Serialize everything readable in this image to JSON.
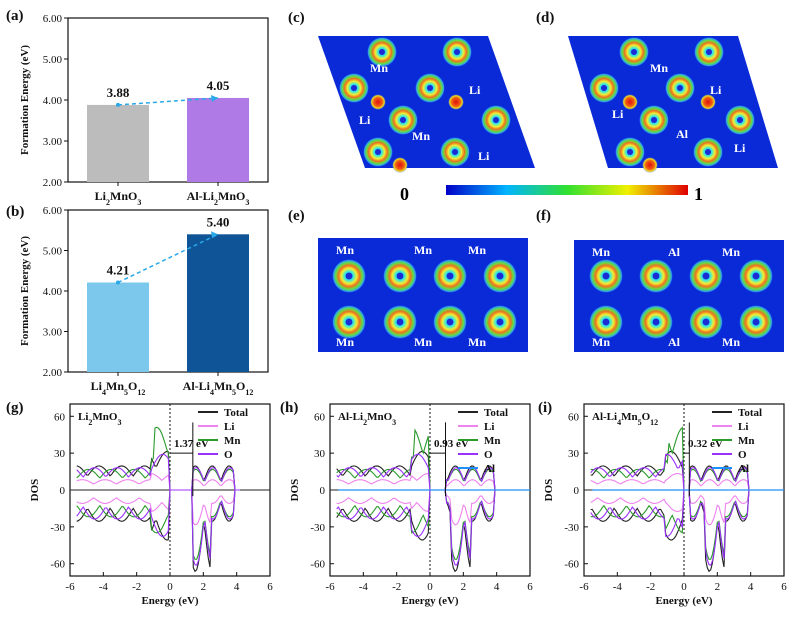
{
  "panel_labels": {
    "a": "(a)",
    "b": "(b)",
    "c": "(c)",
    "d": "(d)",
    "e": "(e)",
    "f": "(f)",
    "g": "(g)",
    "h": "(h)",
    "i": "(i)"
  },
  "colorbar": {
    "min_label": "0",
    "max_label": "1"
  },
  "maps": {
    "c": {
      "labels": [
        "Mn",
        "Li",
        "Li",
        "Mn",
        "Li"
      ]
    },
    "d": {
      "labels": [
        "Mn",
        "Li",
        "Li",
        "Al",
        "Li"
      ]
    },
    "e": {
      "labels": [
        "Mn",
        "Mn",
        "Mn",
        "Mn",
        "Mn",
        "Mn"
      ]
    },
    "f": {
      "labels": [
        "Mn",
        "Al",
        "Mn",
        "Mn",
        "Al",
        "Mn"
      ]
    }
  },
  "chart_data": [
    {
      "id": "a",
      "type": "bar",
      "ylabel": "Formation Energy (eV)",
      "ylim": [
        2.0,
        6.0
      ],
      "yticks": [
        "2.00",
        "3.00",
        "4.00",
        "5.00",
        "6.00"
      ],
      "categories": [
        "Li2MnO3",
        "Al-Li2MnO3"
      ],
      "values": [
        3.88,
        4.05
      ],
      "value_labels": [
        "3.88",
        "4.05"
      ],
      "colors": [
        "#bcbcbc",
        "#b07ae6"
      ]
    },
    {
      "id": "b",
      "type": "bar",
      "ylabel": "Formation Energy (eV)",
      "ylim": [
        2.0,
        6.0
      ],
      "yticks": [
        "2.00",
        "3.00",
        "4.00",
        "5.00",
        "6.00"
      ],
      "categories": [
        "Li4Mn5O12",
        "Al-Li4Mn5O12"
      ],
      "values": [
        4.21,
        5.4
      ],
      "value_labels": [
        "4.21",
        "5.40"
      ],
      "colors": [
        "#7cc7ec",
        "#0e5496"
      ]
    },
    {
      "id": "g",
      "type": "line",
      "title": "Li2MnO3",
      "xlabel": "Energy (eV)",
      "ylabel": "DOS",
      "xlim": [
        -6,
        6
      ],
      "ylim": [
        -70,
        70
      ],
      "xticks": [
        "-6",
        "-4",
        "-2",
        "0",
        "2",
        "4",
        "6"
      ],
      "yticks": [
        "-60",
        "-30",
        "0",
        "30",
        "60"
      ],
      "gap_label": "1.37 eV",
      "gap": [
        0,
        1.37
      ],
      "series": [
        {
          "name": "Total",
          "color": "#222222"
        },
        {
          "name": "Li",
          "color": "#ee82ee"
        },
        {
          "name": "Mn",
          "color": "#2a9a2a"
        },
        {
          "name": "O",
          "color": "#9b30ff"
        }
      ]
    },
    {
      "id": "h",
      "type": "line",
      "title": "Al-Li2MnO3",
      "xlabel": "Energy (eV)",
      "ylabel": "DOS",
      "xlim": [
        -6,
        6
      ],
      "ylim": [
        -70,
        70
      ],
      "xticks": [
        "-6",
        "-4",
        "-2",
        "0",
        "2",
        "4",
        "6"
      ],
      "yticks": [
        "-60",
        "-30",
        "0",
        "30",
        "60"
      ],
      "gap_label": "0.93 eV",
      "gap": [
        0,
        0.93
      ],
      "series": [
        {
          "name": "Total",
          "color": "#222222"
        },
        {
          "name": "Li",
          "color": "#ee82ee"
        },
        {
          "name": "Mn",
          "color": "#2a9a2a"
        },
        {
          "name": "O",
          "color": "#9b30ff"
        },
        {
          "name": "Al",
          "color": "#1e90ff"
        }
      ]
    },
    {
      "id": "i",
      "type": "line",
      "title": "Al-Li4Mn5O12",
      "xlabel": "Energy (eV)",
      "ylabel": "DOS",
      "xlim": [
        -6,
        6
      ],
      "ylim": [
        -70,
        70
      ],
      "xticks": [
        "-6",
        "-4",
        "-2",
        "0",
        "2",
        "4",
        "6"
      ],
      "yticks": [
        "-60",
        "-30",
        "0",
        "30",
        "60"
      ],
      "gap_label": "0.32 eV",
      "gap": [
        0,
        0.32
      ],
      "series": [
        {
          "name": "Total",
          "color": "#222222"
        },
        {
          "name": "Li",
          "color": "#ee82ee"
        },
        {
          "name": "Mn",
          "color": "#2a9a2a"
        },
        {
          "name": "O",
          "color": "#9b30ff"
        },
        {
          "name": "Al",
          "color": "#1e90ff"
        }
      ]
    }
  ]
}
